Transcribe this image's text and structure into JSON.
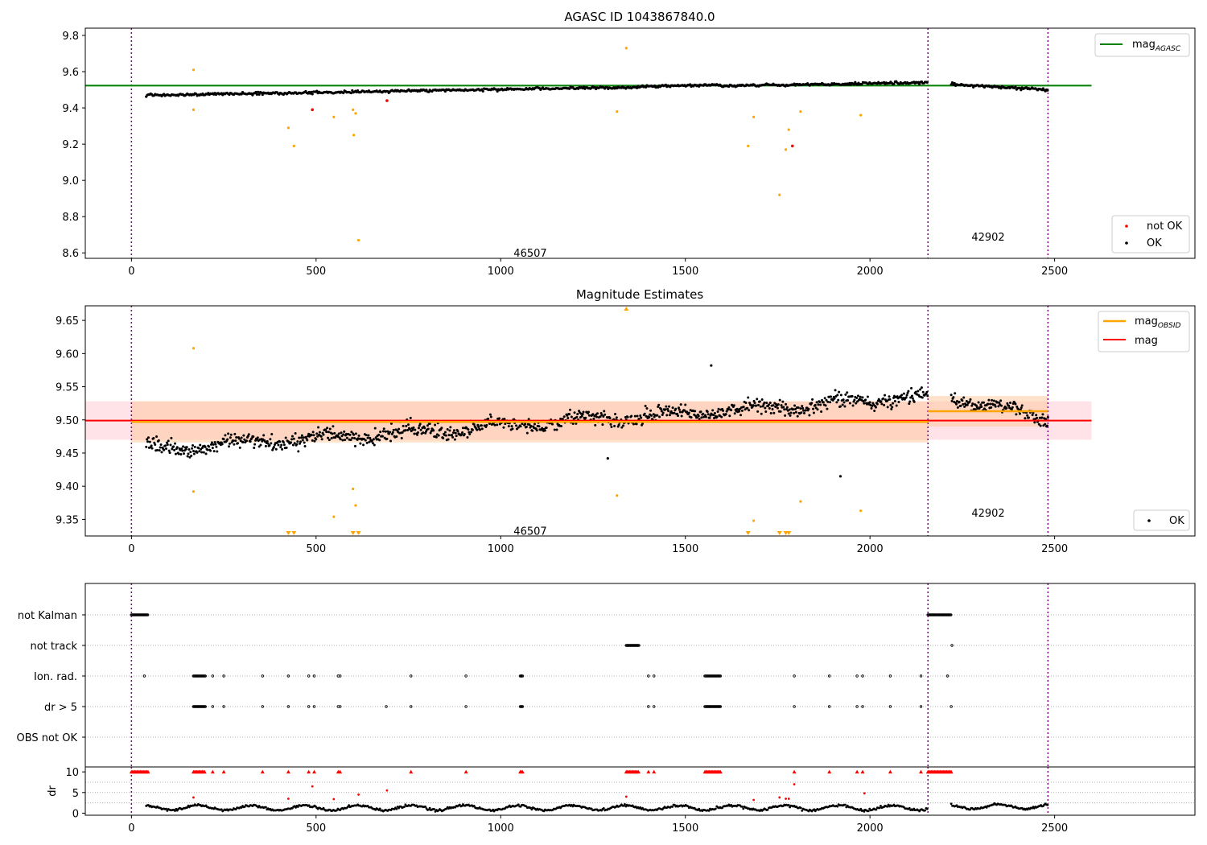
{
  "colors": {
    "ok": "#000000",
    "not_ok": "#ff0000",
    "outlier": "#ffa500",
    "agasc_line": "#008000",
    "mag_line": "#ff0000",
    "obsid_line": "#ffa500",
    "obs_boundary": "#800080",
    "band_all": "#ffc0cb",
    "band_obs": "#ffc69a"
  },
  "chart_data": [
    {
      "type": "scatter",
      "title": "AGASC ID 1043867840.0",
      "xlim": [
        -125,
        2880
      ],
      "ylim": [
        8.57,
        9.84
      ],
      "xticks": [
        0,
        500,
        1000,
        1500,
        2000,
        2500
      ],
      "yticks": [
        8.6,
        8.8,
        9.0,
        9.2,
        9.4,
        9.6,
        9.8
      ],
      "ytick_labels": [
        "8.6",
        "8.8",
        "9.0",
        "9.2",
        "9.4",
        "9.6",
        "9.8"
      ],
      "obs_boundaries": [
        0,
        2157,
        2482
      ],
      "obs_labels": [
        {
          "x": 1080,
          "y": 8.6,
          "text": "46507"
        },
        {
          "x": 2320,
          "y": 8.69,
          "text": "42902"
        }
      ],
      "agasc_mag": {
        "value": 9.523,
        "x_range": [
          -125,
          2600
        ]
      },
      "series": [
        {
          "name": "OK",
          "points_segments": [
            {
              "x_start": 40,
              "x_end": 2157,
              "y_start": 9.47,
              "y_end": 9.54,
              "step": 3
            },
            {
              "x_start": 2220,
              "x_end": 2482,
              "y_start": 9.53,
              "y_end": 9.5,
              "step": 3
            }
          ]
        },
        {
          "name": "not OK",
          "points": [
            [
              490,
              9.39
            ],
            [
              692,
              9.44
            ],
            [
              1790,
              9.19
            ]
          ]
        }
      ],
      "outliers": [
        [
          168,
          9.61
        ],
        [
          168,
          9.39
        ],
        [
          425,
          9.29
        ],
        [
          440,
          9.19
        ],
        [
          548,
          9.35
        ],
        [
          600,
          9.39
        ],
        [
          602,
          9.25
        ],
        [
          607,
          9.37
        ],
        [
          615,
          8.67
        ],
        [
          1315,
          9.38
        ],
        [
          1340,
          9.73
        ],
        [
          1670,
          9.19
        ],
        [
          1685,
          9.35
        ],
        [
          1755,
          8.92
        ],
        [
          1772,
          9.17
        ],
        [
          1780,
          9.28
        ],
        [
          1812,
          9.38
        ],
        [
          1975,
          9.36
        ]
      ],
      "legend_top": [
        "mag_AGASC"
      ],
      "legend_bottom": [
        "not OK",
        "OK"
      ],
      "legend_placement": "top-right and bottom-right"
    },
    {
      "type": "scatter",
      "title": "Magnitude Estimates",
      "xlim": [
        -125,
        2880
      ],
      "ylim": [
        9.325,
        9.672
      ],
      "xticks": [
        0,
        500,
        1000,
        1500,
        2000,
        2500
      ],
      "yticks": [
        9.35,
        9.4,
        9.45,
        9.5,
        9.55,
        9.6,
        9.65
      ],
      "ytick_labels": [
        "9.35",
        "9.40",
        "9.45",
        "9.50",
        "9.55",
        "9.60",
        "9.65"
      ],
      "obs_boundaries": [
        0,
        2157,
        2482
      ],
      "obs_labels": [
        {
          "x": 1080,
          "y": 9.333,
          "text": "46507"
        },
        {
          "x": 2320,
          "y": 9.36,
          "text": "42902"
        }
      ],
      "mag": {
        "value": 9.499,
        "x_range": [
          -125,
          2600
        ],
        "band": [
          9.47,
          9.528
        ]
      },
      "mag_obsid": [
        {
          "value": 9.497,
          "x_range": [
            0,
            2157
          ],
          "band": [
            9.466,
            9.528
          ]
        },
        {
          "value": 9.513,
          "x_range": [
            2157,
            2482
          ],
          "band": [
            9.49,
            9.536
          ]
        }
      ],
      "series": [
        {
          "name": "OK",
          "points_segments": [
            {
              "x_start": 40,
              "x_end": 2157,
              "y_start": 9.455,
              "y_end": 9.535,
              "step": 2
            },
            {
              "x_start": 2220,
              "x_end": 2482,
              "y_start": 9.535,
              "y_end": 9.5,
              "step": 2
            }
          ],
          "extra_points": [
            [
              1920,
              9.415
            ],
            [
              1290,
              9.442
            ],
            [
              1570,
              9.582
            ]
          ]
        }
      ],
      "outliers": [
        [
          168,
          9.608
        ],
        [
          168,
          9.392
        ],
        [
          548,
          9.354
        ],
        [
          600,
          9.396
        ],
        [
          607,
          9.371
        ],
        [
          1315,
          9.386
        ],
        [
          1685,
          9.348
        ],
        [
          1812,
          9.377
        ],
        [
          1975,
          9.363
        ]
      ],
      "outlier_markers_top": [
        1340
      ],
      "outlier_markers_bottom": [
        425,
        440,
        600,
        615,
        1670,
        1755,
        1772,
        1780
      ],
      "legend_top": [
        "mag_OBSID",
        "mag"
      ],
      "legend_bottom": [
        "OK"
      ],
      "legend_placement": "top-right and bottom-right"
    },
    {
      "type": "scatter",
      "title": "",
      "xlim": [
        -125,
        2880
      ],
      "categories": [
        "not Kalman",
        "not track",
        "Ion. rad.",
        "dr > 5",
        "OBS not OK"
      ],
      "flags": {
        "not Kalman": {
          "ranges": [
            [
              0,
              45
            ],
            [
              2157,
              2220
            ]
          ],
          "points": []
        },
        "not track": {
          "ranges": [
            [
              1340,
              1375
            ]
          ],
          "points": [
            2222
          ]
        },
        "Ion. rad.": {
          "ranges": [
            [
              168,
              200
            ],
            [
              1053,
              1060
            ],
            [
              1553,
              1595
            ]
          ],
          "points": [
            35,
            220,
            250,
            355,
            425,
            480,
            495,
            560,
            565,
            757,
            906,
            1055,
            1400,
            1415,
            1795,
            1890,
            1965,
            1980,
            2055,
            2138,
            2210
          ]
        },
        "dr > 5": {
          "ranges": [
            [
              168,
              200
            ],
            [
              1053,
              1060
            ],
            [
              1553,
              1595
            ]
          ],
          "points": [
            220,
            250,
            355,
            425,
            480,
            495,
            560,
            565,
            690,
            757,
            906,
            1400,
            1415,
            1795,
            1890,
            1965,
            1980,
            2055,
            2138,
            2220
          ]
        },
        "OBS not OK": {
          "ranges": [],
          "points": []
        }
      },
      "obs_boundaries": [
        0,
        2157,
        2482
      ]
    },
    {
      "type": "scatter",
      "title": "",
      "ylabel": "dr",
      "xlim": [
        -125,
        2880
      ],
      "ylim": [
        -0.5,
        11.2
      ],
      "xticks": [
        0,
        500,
        1000,
        1500,
        2000,
        2500
      ],
      "yticks": [
        0,
        5,
        10
      ],
      "ytick_labels": [
        "0",
        "5",
        "10"
      ],
      "obs_boundaries": [
        0,
        2157,
        2482
      ],
      "series": [
        {
          "name": "OK",
          "points_segments": [
            {
              "x_start": 40,
              "x_end": 2157,
              "y_mean": 1.3,
              "step": 3
            },
            {
              "x_start": 2220,
              "x_end": 2482,
              "y_mean": 1.6,
              "step": 3
            }
          ]
        },
        {
          "name": "not OK",
          "capped_at": 10,
          "x_ranges": [
            [
              0,
              45
            ],
            [
              168,
              200
            ],
            [
              1053,
              1060
            ],
            [
              1340,
              1375
            ],
            [
              1553,
              1595
            ],
            [
              2157,
              2220
            ]
          ],
          "x_points": [
            220,
            250,
            355,
            425,
            480,
            495,
            560,
            565,
            757,
            906,
            1400,
            1415,
            1795,
            1890,
            1965,
            1980,
            2055,
            2138
          ]
        },
        {
          "name": "not OK",
          "points": [
            [
              168,
              3.8
            ],
            [
              425,
              3.5
            ],
            [
              490,
              6.5
            ],
            [
              548,
              3.4
            ],
            [
              615,
              4.5
            ],
            [
              692,
              5.5
            ],
            [
              1340,
              4.0
            ],
            [
              1685,
              3.2
            ],
            [
              1755,
              3.8
            ],
            [
              1772,
              3.5
            ],
            [
              1780,
              3.5
            ],
            [
              1795,
              7.0
            ],
            [
              1985,
              4.8
            ]
          ]
        }
      ]
    }
  ]
}
